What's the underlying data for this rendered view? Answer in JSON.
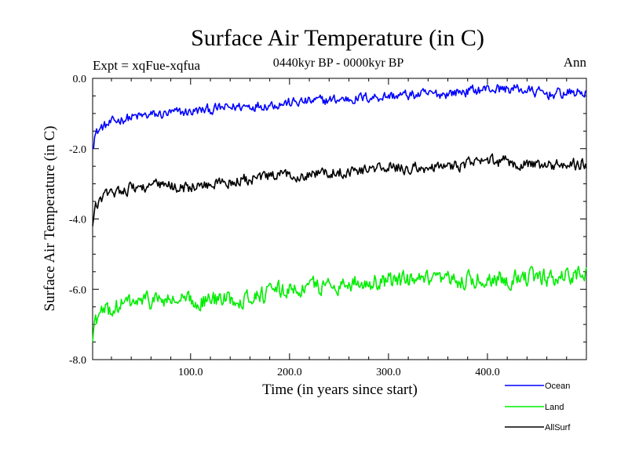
{
  "chart_data": {
    "type": "line",
    "title": "Surface Air Temperature (in C)",
    "subtitle": "0440kyr BP - 0000kyr BP",
    "left_annotation": "Expt = xqFue-xqfua",
    "right_annotation": "Ann",
    "xlabel": "Time (in years since start)",
    "ylabel": "Surface Air Temperature (in C)",
    "xlim": [
      1,
      500
    ],
    "ylim": [
      -8.0,
      0.0
    ],
    "x_ticks": [
      100,
      200,
      300,
      400
    ],
    "x_tick_labels": [
      "100.0",
      "200.0",
      "300.0",
      "400.0"
    ],
    "y_ticks": [
      0,
      -2,
      -4,
      -6,
      -8
    ],
    "y_tick_labels": [
      "0.0",
      "-2.0",
      "-4.0",
      "-6.0",
      "-8.0"
    ],
    "x_step": 1,
    "series": [
      {
        "name": "Ocean",
        "color": "#0000ff",
        "start": -2.0,
        "anchors": [
          [
            1,
            -2.0
          ],
          [
            3,
            -1.6
          ],
          [
            10,
            -1.4
          ],
          [
            30,
            -1.15
          ],
          [
            60,
            -1.05
          ],
          [
            100,
            -0.95
          ],
          [
            150,
            -0.8
          ],
          [
            200,
            -0.7
          ],
          [
            250,
            -0.6
          ],
          [
            300,
            -0.5
          ],
          [
            350,
            -0.45
          ],
          [
            400,
            -0.3
          ],
          [
            430,
            -0.3
          ],
          [
            460,
            -0.45
          ],
          [
            500,
            -0.4
          ]
        ],
        "noise": 0.13
      },
      {
        "name": "Land",
        "color": "#00ee00",
        "start": -7.5,
        "anchors": [
          [
            1,
            -7.5
          ],
          [
            3,
            -6.9
          ],
          [
            10,
            -6.7
          ],
          [
            30,
            -6.45
          ],
          [
            60,
            -6.3
          ],
          [
            100,
            -6.35
          ],
          [
            150,
            -6.25
          ],
          [
            200,
            -6.0
          ],
          [
            250,
            -5.85
          ],
          [
            300,
            -5.75
          ],
          [
            350,
            -5.8
          ],
          [
            400,
            -5.7
          ],
          [
            430,
            -5.65
          ],
          [
            460,
            -5.7
          ],
          [
            500,
            -5.5
          ]
        ],
        "noise": 0.22
      },
      {
        "name": "AllSurf",
        "color": "#000000",
        "start": -4.2,
        "anchors": [
          [
            1,
            -4.2
          ],
          [
            3,
            -3.7
          ],
          [
            10,
            -3.4
          ],
          [
            30,
            -3.15
          ],
          [
            60,
            -3.05
          ],
          [
            100,
            -3.1
          ],
          [
            150,
            -2.9
          ],
          [
            200,
            -2.75
          ],
          [
            250,
            -2.65
          ],
          [
            300,
            -2.55
          ],
          [
            350,
            -2.55
          ],
          [
            400,
            -2.35
          ],
          [
            430,
            -2.4
          ],
          [
            460,
            -2.5
          ],
          [
            500,
            -2.4
          ]
        ],
        "noise": 0.15
      }
    ],
    "legend": {
      "position": "bottom-right",
      "entries": [
        "Ocean",
        "Land",
        "AllSurf"
      ]
    }
  }
}
